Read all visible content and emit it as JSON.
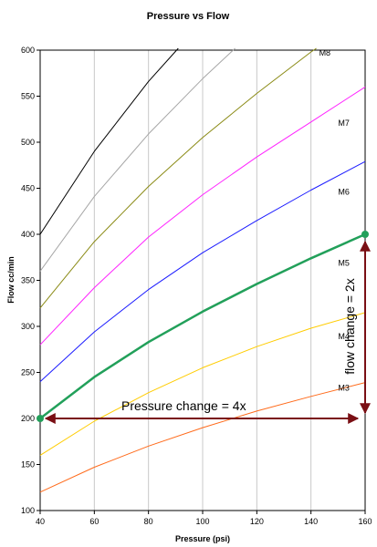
{
  "chart_data": {
    "type": "line",
    "title": "Pressure vs Flow",
    "xlabel": "Pressure (psi)",
    "ylabel": "Flow cc/min",
    "xlim": [
      40,
      160
    ],
    "ylim": [
      100,
      600
    ],
    "xticks": [
      "40",
      "60",
      "80",
      "100",
      "120",
      "140",
      "160"
    ],
    "yticks": [
      "100",
      "150",
      "200",
      "250",
      "300",
      "350",
      "400",
      "450",
      "500",
      "550",
      "600"
    ],
    "grid": "vertical",
    "series": [
      {
        "name": "M3",
        "color": "#ff6a1a",
        "width": 1,
        "label_at": [
          150,
          230
        ],
        "x": [
          40,
          60,
          80,
          100,
          120,
          140,
          160
        ],
        "y": [
          120,
          147,
          170,
          190,
          208,
          224,
          239
        ]
      },
      {
        "name": "M4",
        "color": "#ffcc00",
        "width": 1,
        "label_at": [
          150,
          286
        ],
        "x": [
          40,
          60,
          80,
          100,
          120,
          140,
          160
        ],
        "y": [
          160,
          197,
          228,
          255,
          278,
          298,
          315
        ]
      },
      {
        "name": "M5",
        "color": "#22a05a",
        "width": 2.5,
        "label_at": [
          150,
          366
        ],
        "x": [
          40,
          60,
          80,
          100,
          120,
          140,
          160
        ],
        "y": [
          200,
          245,
          283,
          316,
          346,
          374,
          400
        ]
      },
      {
        "name": "M6",
        "color": "#1a1aff",
        "width": 1,
        "label_at": [
          150,
          443
        ],
        "x": [
          40,
          60,
          80,
          100,
          120,
          140,
          160
        ],
        "y": [
          240,
          294,
          340,
          380,
          415,
          448,
          479
        ]
      },
      {
        "name": "M7",
        "color": "#ff22ff",
        "width": 1,
        "label_at": [
          150,
          518
        ],
        "x": [
          40,
          60,
          80,
          100,
          120,
          140,
          160
        ],
        "y": [
          280,
          342,
          397,
          443,
          484,
          522,
          560
        ]
      },
      {
        "name": "M8",
        "color": "#8a8a14",
        "width": 1,
        "label_at": [
          143,
          594
        ],
        "x": [
          40,
          60,
          80,
          100,
          120,
          140,
          142
        ],
        "y": [
          320,
          392,
          452,
          505,
          553,
          598,
          602
        ]
      },
      {
        "name": "",
        "color": "#a6a6a6",
        "width": 1,
        "label_at": null,
        "x": [
          40,
          60,
          80,
          100,
          112
        ],
        "y": [
          360,
          441,
          509,
          569,
          602
        ]
      },
      {
        "name": "",
        "color": "#000000",
        "width": 1,
        "label_at": null,
        "x": [
          40,
          60,
          80,
          91
        ],
        "y": [
          400,
          490,
          566,
          602
        ]
      }
    ],
    "annotations": {
      "pressure_change": {
        "text": "Pressure change = 4x",
        "from": [
          40,
          200
        ],
        "to": [
          160,
          200
        ],
        "text_at": [
          70,
          209
        ]
      },
      "flow_change": {
        "text": "flow change = 2x",
        "from": [
          160,
          200
        ],
        "to": [
          160,
          400
        ],
        "text_at": [
          156,
          300
        ]
      },
      "points": [
        [
          40,
          200
        ],
        [
          160,
          400
        ]
      ],
      "arrow_color": "#7a0f14",
      "point_color": "#22a05a"
    }
  }
}
